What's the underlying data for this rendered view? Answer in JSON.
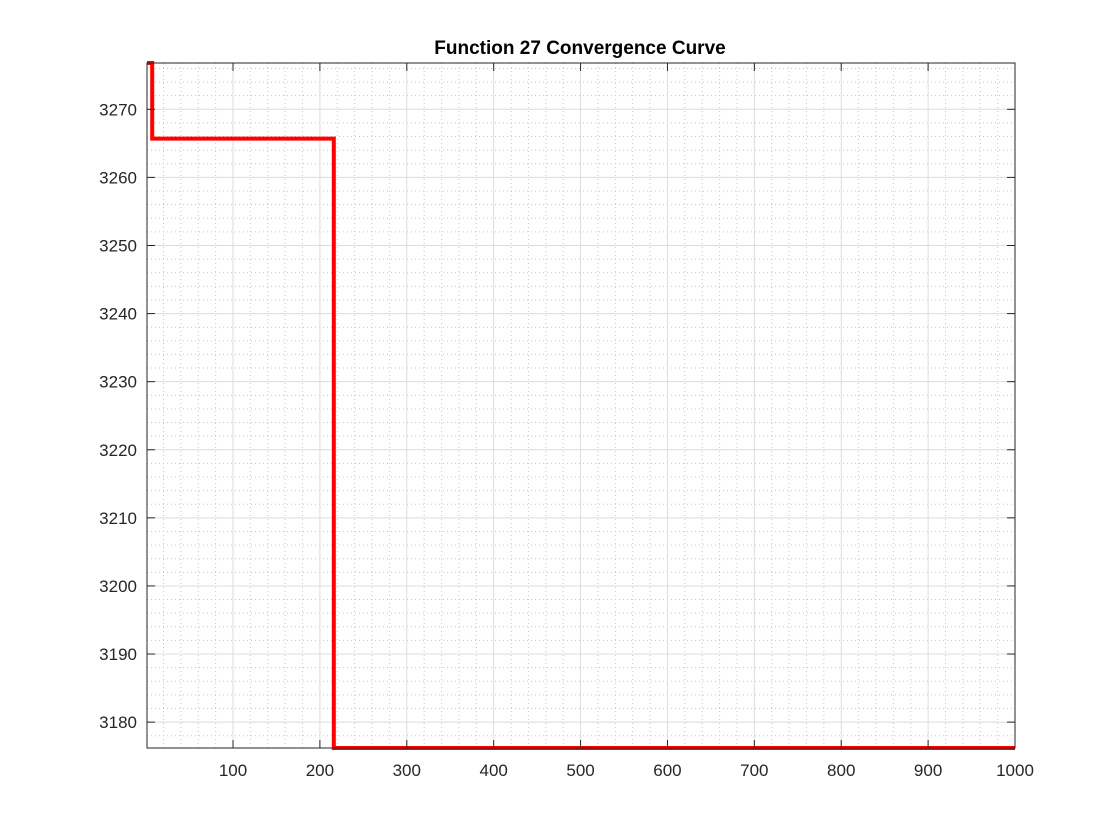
{
  "chart_data": {
    "type": "line",
    "title": "Function 27 Convergence Curve",
    "xlabel": "",
    "ylabel": "",
    "xlim": [
      1,
      1000
    ],
    "ylim": [
      3176.2,
      3276.8
    ],
    "xticks": [
      100,
      200,
      300,
      400,
      500,
      600,
      700,
      800,
      900,
      1000
    ],
    "yticks": [
      3180,
      3190,
      3200,
      3210,
      3220,
      3230,
      3240,
      3250,
      3260,
      3270
    ],
    "grid": true,
    "minor_grid": true,
    "series": [
      {
        "color": "#ff0000",
        "x": [
          1,
          7,
          7,
          216,
          216,
          1000
        ],
        "y": [
          3276.8,
          3276.8,
          3265.7,
          3265.7,
          3176.2,
          3176.2
        ]
      }
    ]
  }
}
